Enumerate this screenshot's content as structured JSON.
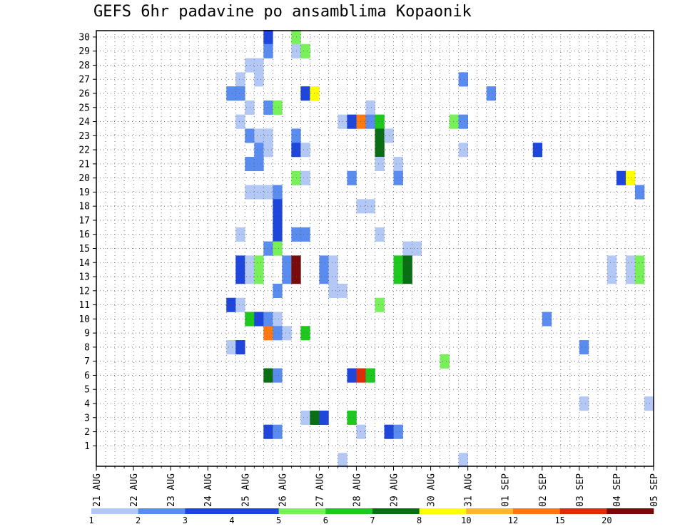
{
  "chart_data": {
    "type": "heatmap",
    "title": "GEFS 6hr padavine po ansamblima Kopaonik",
    "xlabel": "",
    "ylabel": "",
    "x_ticks": [
      "21 AUG",
      "22 AUG",
      "23 AUG",
      "24 AUG",
      "25 AUG",
      "26 AUG",
      "27 AUG",
      "28 AUG",
      "29 AUG",
      "30 AUG",
      "31 AUG",
      "01 SEP",
      "02 SEP",
      "03 SEP",
      "04 SEP",
      "05 SEP"
    ],
    "y_ticks": [
      "1",
      "2",
      "3",
      "4",
      "5",
      "6",
      "7",
      "8",
      "9",
      "10",
      "11",
      "12",
      "13",
      "14",
      "15",
      "16",
      "17",
      "18",
      "19",
      "20",
      "21",
      "22",
      "23",
      "24",
      "25",
      "26",
      "27",
      "28",
      "29",
      "30"
    ],
    "x_range": [
      "21 AUG 00Z",
      "05 SEP 00Z"
    ],
    "y_range": [
      0,
      30
    ],
    "time_step_hours": 6,
    "grid": true,
    "legend": {
      "placement": "bottom",
      "labels": [
        "1",
        "2",
        "3",
        "4",
        "5",
        "6",
        "7",
        "8",
        "10",
        "12",
        "15",
        "20"
      ],
      "colors": [
        "#b4c8f5",
        "#5a8cf0",
        "#1e46dc",
        "#1e46dc",
        "#78f05a",
        "#1ec81e",
        "#0a6e14",
        "#ffff00",
        "#ffb432",
        "#ff7814",
        "#dc2d0a",
        "#780a0a"
      ]
    },
    "level_colors": {
      "1": "#b4c8f5",
      "2": "#5a8cf0",
      "3": "#1e46dc",
      "5": "#78f05a",
      "6": "#1ec81e",
      "7": "#0a6e14",
      "8": "#ffff00",
      "12": "#ff7814",
      "15": "#dc2d0a",
      "20": "#780a0a"
    },
    "cells": [
      {
        "time": "25 AUG 12Z",
        "member": 30,
        "level": 3
      },
      {
        "time": "26 AUG 06Z",
        "member": 30,
        "level": 5
      },
      {
        "time": "25 AUG 12Z",
        "member": 29,
        "level": 2
      },
      {
        "time": "26 AUG 06Z",
        "member": 29,
        "level": 1
      },
      {
        "time": "26 AUG 12Z",
        "member": 29,
        "level": 5
      },
      {
        "time": "25 AUG 00Z",
        "member": 28,
        "level": 1
      },
      {
        "time": "25 AUG 06Z",
        "member": 28,
        "level": 1
      },
      {
        "time": "24 AUG 18Z",
        "member": 27,
        "level": 1
      },
      {
        "time": "25 AUG 06Z",
        "member": 27,
        "level": 1
      },
      {
        "time": "30 AUG 18Z",
        "member": 27,
        "level": 2
      },
      {
        "time": "24 AUG 12Z",
        "member": 26,
        "level": 2
      },
      {
        "time": "24 AUG 18Z",
        "member": 26,
        "level": 2
      },
      {
        "time": "26 AUG 12Z",
        "member": 26,
        "level": 3
      },
      {
        "time": "26 AUG 18Z",
        "member": 26,
        "level": 8
      },
      {
        "time": "31 AUG 12Z",
        "member": 26,
        "level": 2
      },
      {
        "time": "25 AUG 00Z",
        "member": 25,
        "level": 1
      },
      {
        "time": "25 AUG 12Z",
        "member": 25,
        "level": 2
      },
      {
        "time": "25 AUG 18Z",
        "member": 25,
        "level": 5
      },
      {
        "time": "28 AUG 06Z",
        "member": 25,
        "level": 1
      },
      {
        "time": "24 AUG 18Z",
        "member": 24,
        "level": 1
      },
      {
        "time": "27 AUG 12Z",
        "member": 24,
        "level": 1
      },
      {
        "time": "27 AUG 18Z",
        "member": 24,
        "level": 3
      },
      {
        "time": "28 AUG 00Z",
        "member": 24,
        "level": 12
      },
      {
        "time": "28 AUG 06Z",
        "member": 24,
        "level": 2
      },
      {
        "time": "28 AUG 12Z",
        "member": 24,
        "level": 6
      },
      {
        "time": "30 AUG 12Z",
        "member": 24,
        "level": 5
      },
      {
        "time": "30 AUG 18Z",
        "member": 24,
        "level": 2
      },
      {
        "time": "25 AUG 00Z",
        "member": 23,
        "level": 2
      },
      {
        "time": "25 AUG 06Z",
        "member": 23,
        "level": 1
      },
      {
        "time": "25 AUG 12Z",
        "member": 23,
        "level": 1
      },
      {
        "time": "26 AUG 06Z",
        "member": 23,
        "level": 2
      },
      {
        "time": "28 AUG 12Z",
        "member": 23,
        "level": 7
      },
      {
        "time": "28 AUG 18Z",
        "member": 23,
        "level": 1
      },
      {
        "time": "25 AUG 06Z",
        "member": 22,
        "level": 2
      },
      {
        "time": "25 AUG 12Z",
        "member": 22,
        "level": 1
      },
      {
        "time": "26 AUG 06Z",
        "member": 22,
        "level": 3
      },
      {
        "time": "26 AUG 12Z",
        "member": 22,
        "level": 1
      },
      {
        "time": "28 AUG 12Z",
        "member": 22,
        "level": 7
      },
      {
        "time": "30 AUG 18Z",
        "member": 22,
        "level": 1
      },
      {
        "time": "01 SEP 18Z",
        "member": 22,
        "level": 3
      },
      {
        "time": "25 AUG 00Z",
        "member": 21,
        "level": 2
      },
      {
        "time": "25 AUG 06Z",
        "member": 21,
        "level": 2
      },
      {
        "time": "28 AUG 12Z",
        "member": 21,
        "level": 1
      },
      {
        "time": "29 AUG 00Z",
        "member": 21,
        "level": 1
      },
      {
        "time": "26 AUG 06Z",
        "member": 20,
        "level": 5
      },
      {
        "time": "26 AUG 12Z",
        "member": 20,
        "level": 1
      },
      {
        "time": "27 AUG 18Z",
        "member": 20,
        "level": 2
      },
      {
        "time": "29 AUG 00Z",
        "member": 20,
        "level": 2
      },
      {
        "time": "04 SEP 00Z",
        "member": 20,
        "level": 3
      },
      {
        "time": "04 SEP 06Z",
        "member": 20,
        "level": 8
      },
      {
        "time": "25 AUG 00Z",
        "member": 19,
        "level": 1
      },
      {
        "time": "25 AUG 06Z",
        "member": 19,
        "level": 1
      },
      {
        "time": "25 AUG 12Z",
        "member": 19,
        "level": 1
      },
      {
        "time": "25 AUG 18Z",
        "member": 19,
        "level": 2
      },
      {
        "time": "04 SEP 12Z",
        "member": 19,
        "level": 2
      },
      {
        "time": "25 AUG 18Z",
        "member": 18,
        "level": 3
      },
      {
        "time": "28 AUG 00Z",
        "member": 18,
        "level": 1
      },
      {
        "time": "28 AUG 06Z",
        "member": 18,
        "level": 1
      },
      {
        "time": "25 AUG 18Z",
        "member": 17,
        "level": 3
      },
      {
        "time": "24 AUG 18Z",
        "member": 16,
        "level": 1
      },
      {
        "time": "25 AUG 18Z",
        "member": 16,
        "level": 3
      },
      {
        "time": "26 AUG 06Z",
        "member": 16,
        "level": 2
      },
      {
        "time": "26 AUG 12Z",
        "member": 16,
        "level": 2
      },
      {
        "time": "28 AUG 12Z",
        "member": 16,
        "level": 1
      },
      {
        "time": "25 AUG 12Z",
        "member": 15,
        "level": 2
      },
      {
        "time": "25 AUG 18Z",
        "member": 15,
        "level": 5
      },
      {
        "time": "29 AUG 06Z",
        "member": 15,
        "level": 1
      },
      {
        "time": "29 AUG 12Z",
        "member": 15,
        "level": 1
      },
      {
        "time": "24 AUG 18Z",
        "member": 14,
        "level": 3
      },
      {
        "time": "25 AUG 00Z",
        "member": 14,
        "level": 1
      },
      {
        "time": "25 AUG 06Z",
        "member": 14,
        "level": 5
      },
      {
        "time": "26 AUG 00Z",
        "member": 14,
        "level": 2
      },
      {
        "time": "26 AUG 06Z",
        "member": 14,
        "level": 20
      },
      {
        "time": "27 AUG 00Z",
        "member": 14,
        "level": 2
      },
      {
        "time": "27 AUG 06Z",
        "member": 14,
        "level": 1
      },
      {
        "time": "29 AUG 00Z",
        "member": 14,
        "level": 6
      },
      {
        "time": "29 AUG 06Z",
        "member": 14,
        "level": 7
      },
      {
        "time": "03 SEP 18Z",
        "member": 14,
        "level": 1
      },
      {
        "time": "04 SEP 06Z",
        "member": 14,
        "level": 1
      },
      {
        "time": "04 SEP 12Z",
        "member": 14,
        "level": 5
      },
      {
        "time": "24 AUG 18Z",
        "member": 13,
        "level": 3
      },
      {
        "time": "25 AUG 00Z",
        "member": 13,
        "level": 1
      },
      {
        "time": "25 AUG 06Z",
        "member": 13,
        "level": 5
      },
      {
        "time": "26 AUG 00Z",
        "member": 13,
        "level": 2
      },
      {
        "time": "26 AUG 06Z",
        "member": 13,
        "level": 20
      },
      {
        "time": "27 AUG 00Z",
        "member": 13,
        "level": 2
      },
      {
        "time": "27 AUG 06Z",
        "member": 13,
        "level": 1
      },
      {
        "time": "29 AUG 00Z",
        "member": 13,
        "level": 6
      },
      {
        "time": "29 AUG 06Z",
        "member": 13,
        "level": 7
      },
      {
        "time": "03 SEP 18Z",
        "member": 13,
        "level": 1
      },
      {
        "time": "04 SEP 06Z",
        "member": 13,
        "level": 1
      },
      {
        "time": "04 SEP 12Z",
        "member": 13,
        "level": 5
      },
      {
        "time": "25 AUG 18Z",
        "member": 12,
        "level": 2
      },
      {
        "time": "27 AUG 06Z",
        "member": 12,
        "level": 1
      },
      {
        "time": "27 AUG 12Z",
        "member": 12,
        "level": 1
      },
      {
        "time": "24 AUG 12Z",
        "member": 11,
        "level": 3
      },
      {
        "time": "24 AUG 18Z",
        "member": 11,
        "level": 1
      },
      {
        "time": "28 AUG 12Z",
        "member": 11,
        "level": 5
      },
      {
        "time": "25 AUG 00Z",
        "member": 10,
        "level": 6
      },
      {
        "time": "25 AUG 06Z",
        "member": 10,
        "level": 3
      },
      {
        "time": "25 AUG 12Z",
        "member": 10,
        "level": 2
      },
      {
        "time": "25 AUG 18Z",
        "member": 10,
        "level": 1
      },
      {
        "time": "02 SEP 00Z",
        "member": 10,
        "level": 2
      },
      {
        "time": "25 AUG 12Z",
        "member": 9,
        "level": 12
      },
      {
        "time": "25 AUG 18Z",
        "member": 9,
        "level": 2
      },
      {
        "time": "26 AUG 00Z",
        "member": 9,
        "level": 1
      },
      {
        "time": "26 AUG 12Z",
        "member": 9,
        "level": 6
      },
      {
        "time": "24 AUG 12Z",
        "member": 8,
        "level": 1
      },
      {
        "time": "24 AUG 18Z",
        "member": 8,
        "level": 3
      },
      {
        "time": "03 SEP 00Z",
        "member": 8,
        "level": 2
      },
      {
        "time": "30 AUG 06Z",
        "member": 7,
        "level": 5
      },
      {
        "time": "25 AUG 12Z",
        "member": 6,
        "level": 7
      },
      {
        "time": "25 AUG 18Z",
        "member": 6,
        "level": 2
      },
      {
        "time": "27 AUG 18Z",
        "member": 6,
        "level": 3
      },
      {
        "time": "28 AUG 00Z",
        "member": 6,
        "level": 15
      },
      {
        "time": "28 AUG 06Z",
        "member": 6,
        "level": 6
      },
      {
        "time": "03 SEP 00Z",
        "member": 4,
        "level": 1
      },
      {
        "time": "04 SEP 18Z",
        "member": 4,
        "level": 1
      },
      {
        "time": "26 AUG 12Z",
        "member": 3,
        "level": 1
      },
      {
        "time": "26 AUG 18Z",
        "member": 3,
        "level": 7
      },
      {
        "time": "27 AUG 00Z",
        "member": 3,
        "level": 3
      },
      {
        "time": "27 AUG 18Z",
        "member": 3,
        "level": 6
      },
      {
        "time": "25 AUG 12Z",
        "member": 2,
        "level": 3
      },
      {
        "time": "25 AUG 18Z",
        "member": 2,
        "level": 2
      },
      {
        "time": "28 AUG 00Z",
        "member": 2,
        "level": 1
      },
      {
        "time": "28 AUG 18Z",
        "member": 2,
        "level": 3
      },
      {
        "time": "29 AUG 00Z",
        "member": 2,
        "level": 2
      },
      {
        "time": "27 AUG 12Z",
        "member": 0,
        "level": 1
      },
      {
        "time": "30 AUG 18Z",
        "member": 0,
        "level": 1
      }
    ]
  }
}
